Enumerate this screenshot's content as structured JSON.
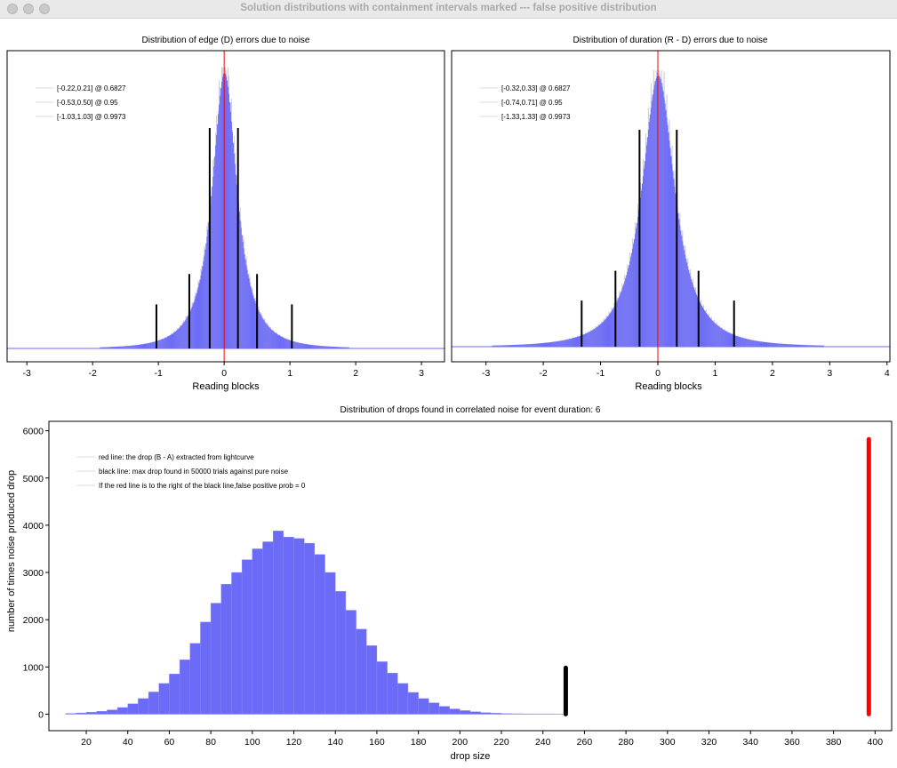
{
  "window": {
    "title": "Solution distributions with containment intervals marked --- false positive distribution"
  },
  "colors": {
    "histogram_fill": "#6b6bf7",
    "histogram_light": "#c8c8d8",
    "center_line": "#ff0000",
    "interval_lines": "#000000",
    "legend_line": "#d8d8e4"
  },
  "chart_data": [
    {
      "type": "bar",
      "title": "Distribution of edge (D) errors due to noise",
      "xlabel": "Reading blocks",
      "ylabel": "",
      "xlim": [
        -3.3,
        3.35
      ],
      "xticks": [
        -3,
        -2,
        -1,
        0,
        1,
        2,
        3
      ],
      "distribution": {
        "center": 0,
        "sigma": 0.215,
        "peak_height": 1.0
      },
      "center_line_x": 0,
      "intervals": [
        {
          "label": "[-0.22,0.21] @ 0.6827",
          "low": -0.22,
          "high": 0.21,
          "height": 0.8
        },
        {
          "label": "[-0.53,0.50] @ 0.95",
          "low": -0.53,
          "high": 0.5,
          "height": 0.27
        },
        {
          "label": "[-1.03,1.03] @ 0.9973",
          "low": -1.03,
          "high": 1.03,
          "height": 0.16
        }
      ],
      "legend": "top-left",
      "grid": false
    },
    {
      "type": "bar",
      "title": "Distribution of duration (R - D) errors due to noise",
      "xlabel": "Reading blocks",
      "ylabel": "",
      "xlim": [
        -3.6,
        4.05
      ],
      "xticks": [
        -3,
        -2,
        -1,
        0,
        1,
        2,
        3,
        4
      ],
      "distribution": {
        "center": 0,
        "sigma": 0.33,
        "peak_height": 1.0
      },
      "center_line_x": 0,
      "intervals": [
        {
          "label": "[-0.32,0.33] @ 0.6827",
          "low": -0.32,
          "high": 0.33,
          "height": 0.8
        },
        {
          "label": "[-0.74,0.71] @ 0.95",
          "low": -0.74,
          "high": 0.71,
          "height": 0.28
        },
        {
          "label": "[-1.33,1.33] @ 0.9973",
          "low": -1.33,
          "high": 1.33,
          "height": 0.17
        }
      ],
      "legend": "top-left",
      "grid": false
    },
    {
      "type": "bar",
      "title": "Distribution of drops found in correlated noise for event duration: 6",
      "xlabel": "drop size",
      "ylabel": "number of times noise produced drop",
      "xlim": [
        2,
        408
      ],
      "ylim": [
        -350,
        6200
      ],
      "xticks": [
        20,
        40,
        60,
        80,
        100,
        120,
        140,
        160,
        180,
        200,
        220,
        240,
        260,
        280,
        300,
        320,
        340,
        360,
        380,
        400
      ],
      "yticks": [
        0,
        1000,
        2000,
        3000,
        4000,
        5000,
        6000
      ],
      "bin_start": 10,
      "bin_width": 5,
      "values": [
        15,
        25,
        40,
        60,
        90,
        140,
        220,
        330,
        470,
        650,
        850,
        1150,
        1500,
        1950,
        2350,
        2750,
        3000,
        3270,
        3500,
        3650,
        3880,
        3750,
        3720,
        3620,
        3380,
        3000,
        2600,
        2200,
        1800,
        1450,
        1110,
        870,
        650,
        460,
        330,
        240,
        165,
        110,
        75,
        50,
        32,
        20,
        12,
        8,
        5,
        3,
        2,
        1
      ],
      "black_line": {
        "x": 251,
        "y_top": 980,
        "label": "black line: max drop found in 50000 trials against pure noise"
      },
      "red_line": {
        "x": 397,
        "y_top": 5820,
        "label": "red line: the drop (B - A) extracted from lightcurve"
      },
      "legend_entries": [
        "red line: the drop (B - A) extracted from lightcurve",
        "black line: max drop found in 50000 trials against pure noise",
        "If the red line is to the right of the black line,false positive prob = 0"
      ],
      "legend": "top-left",
      "grid": false
    }
  ]
}
